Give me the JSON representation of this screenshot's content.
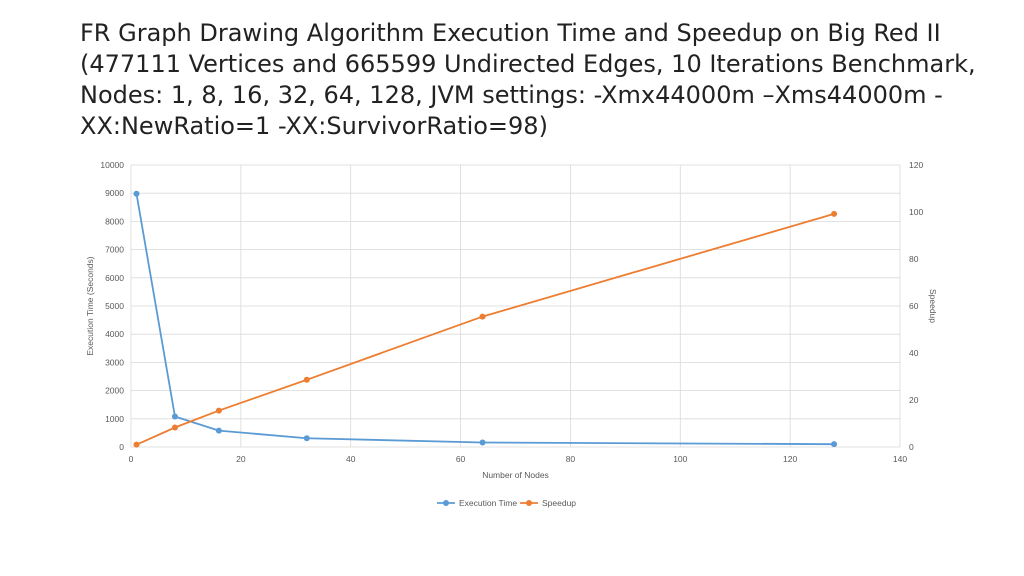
{
  "slide": {
    "title": "FR Graph Drawing Algorithm Execution Time and Speedup on Big Red II (477111 Vertices and 665599 Undirected Edges, 10 Iterations Benchmark, Nodes: 1, 8, 16, 32, 64, 128, JVM settings: -Xmx44000m –Xms44000m -XX:NewRatio=1 -XX:SurvivorRatio=98)"
  },
  "chart_data": {
    "type": "line",
    "title": "FR Graph Drawing Algorithm Execution Time and Speedup on Big Red II (477111 Vertices and 665599 Undirected Edges, 10 Iterations Benchmark, Nodes: 1, 8, 16, 32, 64, 128, JVM settings: -Xmx44000m –Xms44000m -XX:NewRatio=1 -XX:SurvivorRatio=98)",
    "xlabel": "Number of Nodes",
    "ylabel": "Execution Time (Seconds)",
    "y2label": "Speedup",
    "xlim": [
      0,
      140
    ],
    "ylim": [
      0,
      10000
    ],
    "y2lim": [
      0,
      120
    ],
    "x_ticks": [
      0,
      20,
      40,
      60,
      80,
      100,
      120,
      140
    ],
    "y_ticks": [
      0,
      1000,
      2000,
      3000,
      4000,
      5000,
      6000,
      7000,
      8000,
      9000,
      10000
    ],
    "y2_ticks": [
      0,
      20,
      40,
      60,
      80,
      100,
      120
    ],
    "grid": true,
    "legend": "bottom",
    "x": [
      1,
      8,
      16,
      32,
      64,
      128
    ],
    "series": [
      {
        "name": "Execution Time",
        "axis": "left",
        "color": "#5B9BD5",
        "values": [
          8980,
          1080,
          580,
          310,
          160,
          100
        ]
      },
      {
        "name": "Speedup",
        "axis": "right",
        "color": "#ED7D31",
        "values": [
          1,
          8.3,
          15.5,
          28.6,
          55.5,
          99.2
        ]
      }
    ]
  }
}
